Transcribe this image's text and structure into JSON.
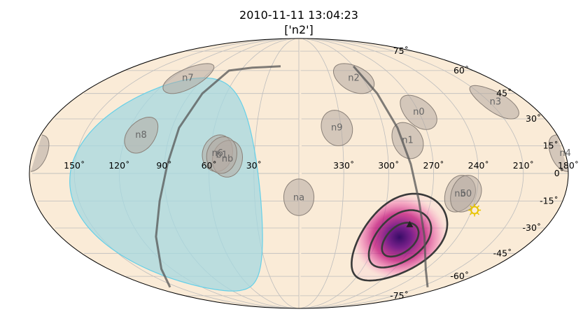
{
  "chart_data": {
    "type": "scatter",
    "projection": "mollweide",
    "title": "2010-11-11 13:04:23",
    "subtitle": "['n2']",
    "xlabel": "",
    "ylabel": "",
    "lon_direction": "east-left",
    "lon_ticks": [
      "330˚",
      "300˚",
      "270˚",
      "240˚",
      "210˚",
      "180˚",
      "150˚",
      "120˚",
      "90˚",
      "60˚",
      "30˚"
    ],
    "lon_tick_values": [
      330,
      300,
      270,
      240,
      210,
      180,
      150,
      120,
      90,
      60,
      30
    ],
    "lat_ticks": [
      "75˚",
      "60˚",
      "45˚",
      "30˚",
      "15˚",
      "0˚",
      "-15˚",
      "-30˚",
      "-45˚",
      "-60˚",
      "-75˚"
    ],
    "lat_tick_values": [
      75,
      60,
      45,
      30,
      15,
      0,
      -15,
      -30,
      -45,
      -60,
      -75
    ],
    "grid": true,
    "colors": {
      "sky": "#faebd7",
      "detector": "#b4aaa2",
      "earth": "#a6d8e0",
      "earth_edge": "#66d0e8",
      "localization": "#c2127d",
      "localization_core": "#4a0a78",
      "contour": "#3a3a3a",
      "sun": "#e8c400",
      "galactic_plane": "#555555"
    },
    "detectors": [
      {
        "name": "n0",
        "lon": 270,
        "lat": 34
      },
      {
        "name": "n1",
        "lon": 285,
        "lat": 18
      },
      {
        "name": "n2",
        "lon": 308,
        "lat": 55
      },
      {
        "name": "n3",
        "lon": 205,
        "lat": 40
      },
      {
        "name": "n4",
        "lon": 180,
        "lat": 11
      },
      {
        "name": "n5",
        "lon": 251,
        "lat": -11
      },
      {
        "name": "n6",
        "lon": 55,
        "lat": 11
      },
      {
        "name": "n7",
        "lon": 105,
        "lat": 55
      },
      {
        "name": "n8",
        "lon": 110,
        "lat": 21
      },
      {
        "name": "n9",
        "lon": 333,
        "lat": 25
      },
      {
        "name": "na",
        "lon": 360,
        "lat": -13
      },
      {
        "name": "nb",
        "lon": 48,
        "lat": 8
      },
      {
        "name": "b0",
        "lon": 247,
        "lat": -11
      },
      {
        "name": "b1",
        "lon": 52,
        "lat": 10
      }
    ],
    "earth_occultation": {
      "center_lon": 90,
      "center_lat": -8,
      "radius_deg": 63
    },
    "localization": {
      "center_lon": 282,
      "center_lat": -37,
      "contour_radii_deg": [
        10,
        17,
        26
      ]
    },
    "sun": {
      "lon": 238,
      "lat": -20
    },
    "source": {
      "lon": 280,
      "lat": -28
    },
    "galactic_plane": {
      "points": [
        [
          300,
          63
        ],
        [
          295,
          45
        ],
        [
          290,
          25
        ],
        [
          285,
          5
        ],
        [
          278,
          -15
        ],
        [
          265,
          -35
        ],
        [
          240,
          -55
        ],
        [
          200,
          -68
        ],
        [
          160,
          -68
        ],
        [
          130,
          -55
        ],
        [
          108,
          -35
        ],
        [
          95,
          -15
        ],
        [
          88,
          5
        ],
        [
          85,
          25
        ],
        [
          80,
          45
        ],
        [
          72,
          60
        ],
        [
          50,
          62
        ],
        [
          20,
          63
        ]
      ]
    }
  }
}
